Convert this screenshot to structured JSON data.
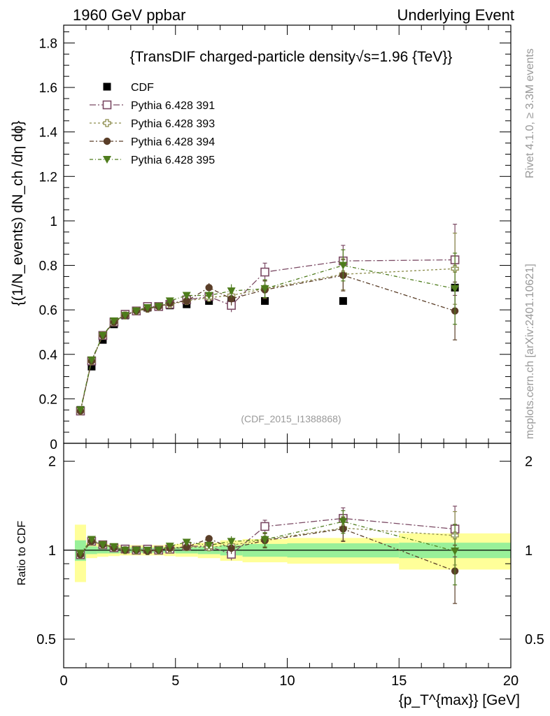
{
  "header": {
    "left": "1960 GeV ppbar",
    "right": "Underlying Event"
  },
  "side_labels": {
    "rivet": "Rivet 4.1.0, ≥ 3.3M events",
    "mcplots": "mcplots.cern.ch [arXiv:2401.10621]"
  },
  "colors": {
    "cdf": "#000000",
    "p391": "#7b4a64",
    "p393": "#8c8c4c",
    "p394": "#5a3e28",
    "p395": "#4e7c1c",
    "band_green": "#99f099",
    "band_yellow": "#ffff99"
  },
  "chart_data": [
    {
      "type": "scatter",
      "title": "{TransDIF charged-particle density√s=1.96 {TeV}}",
      "analysis_label": "(CDF_2015_I1388868)",
      "xlabel": "{p_T^{max}} [GeV]",
      "ylabel": "{(1/N_events) dN_ch /dη dϕ}",
      "xlim": [
        0,
        20
      ],
      "ylim": [
        0,
        1.88
      ],
      "yticks": [
        0.2,
        0.4,
        0.6,
        0.8,
        1,
        1.2,
        1.4,
        1.6,
        1.8
      ],
      "ytick_labels": [
        "0.2",
        "0.4",
        "0.6",
        "0.8",
        "1",
        "1.2",
        "1.4",
        "1.6",
        "1.8"
      ],
      "y_bottom_label": "0",
      "x": [
        0.75,
        1.25,
        1.75,
        2.25,
        2.75,
        3.25,
        3.75,
        4.25,
        4.75,
        5.5,
        6.5,
        7.5,
        9.0,
        12.5,
        17.5
      ],
      "xerr": [
        0.25,
        0.25,
        0.25,
        0.25,
        0.25,
        0.25,
        0.25,
        0.25,
        0.25,
        0.5,
        0.5,
        0.5,
        1.0,
        2.5,
        2.5
      ],
      "legend": [
        "CDF",
        "Pythia 6.428 391",
        "Pythia 6.428 393",
        "Pythia 6.428 394",
        "Pythia 6.428 395"
      ],
      "series": [
        {
          "name": "CDF",
          "marker": "square-filled",
          "values": [
            0.15,
            0.345,
            0.465,
            0.535,
            0.575,
            0.595,
            0.61,
            0.615,
            0.62,
            0.625,
            0.64,
            0.64,
            0.64,
            0.64,
            0.7
          ],
          "errors": [
            0.005,
            0.006,
            0.007,
            0.008,
            0.008,
            0.008,
            0.008,
            0.008,
            0.009,
            0.01,
            0.01,
            0.01,
            0.012,
            0.015,
            0.02
          ]
        },
        {
          "name": "Pythia 6.428 391",
          "marker": "square-open",
          "values": [
            0.145,
            0.37,
            0.485,
            0.545,
            0.58,
            0.595,
            0.615,
            0.615,
            0.625,
            0.645,
            0.66,
            0.62,
            0.77,
            0.82,
            0.825
          ],
          "errors": [
            0.004,
            0.005,
            0.006,
            0.007,
            0.008,
            0.009,
            0.01,
            0.011,
            0.012,
            0.015,
            0.02,
            0.03,
            0.04,
            0.07,
            0.16
          ]
        },
        {
          "name": "Pythia 6.428 393",
          "marker": "cross-open",
          "values": [
            0.145,
            0.37,
            0.485,
            0.545,
            0.575,
            0.595,
            0.605,
            0.615,
            0.625,
            0.64,
            0.655,
            0.665,
            0.695,
            0.76,
            0.785
          ],
          "errors": [
            0.004,
            0.005,
            0.006,
            0.007,
            0.008,
            0.009,
            0.01,
            0.011,
            0.012,
            0.015,
            0.02,
            0.03,
            0.04,
            0.07,
            0.16
          ]
        },
        {
          "name": "Pythia 6.428 394",
          "marker": "circle-filled",
          "values": [
            0.145,
            0.37,
            0.485,
            0.545,
            0.575,
            0.595,
            0.605,
            0.615,
            0.63,
            0.64,
            0.7,
            0.65,
            0.69,
            0.755,
            0.595
          ],
          "errors": [
            0.004,
            0.005,
            0.006,
            0.007,
            0.008,
            0.009,
            0.01,
            0.011,
            0.012,
            0.015,
            0.02,
            0.03,
            0.04,
            0.07,
            0.13
          ]
        },
        {
          "name": "Pythia 6.428 395",
          "marker": "triangle-down-filled",
          "values": [
            0.15,
            0.375,
            0.485,
            0.55,
            0.575,
            0.595,
            0.61,
            0.615,
            0.64,
            0.665,
            0.665,
            0.685,
            0.695,
            0.8,
            0.695
          ],
          "errors": [
            0.004,
            0.005,
            0.006,
            0.007,
            0.008,
            0.009,
            0.01,
            0.011,
            0.012,
            0.015,
            0.02,
            0.03,
            0.04,
            0.07,
            0.16
          ]
        }
      ]
    },
    {
      "type": "scatter",
      "title": "",
      "xlabel": "{p_T^{max}} [GeV]",
      "ylabel": "Ratio to CDF",
      "xlim": [
        0,
        20
      ],
      "ylim": [
        0.4,
        2.3
      ],
      "yscale": "log",
      "xticks": [
        0,
        5,
        10,
        15,
        20
      ],
      "xtick_labels": [
        "0",
        "5",
        "10",
        "15",
        "20"
      ],
      "yticks": [
        0.5,
        1,
        2
      ],
      "ytick_labels": [
        "0.5",
        "1",
        "2"
      ],
      "reference_line": 1,
      "bands": {
        "x_low": [
          0.5,
          1.0,
          1.5,
          2.0,
          2.5,
          3.0,
          3.5,
          4.0,
          4.5,
          5.0,
          6.0,
          7.0,
          8.0,
          10.0,
          15.0
        ],
        "x_high": [
          1.0,
          1.5,
          2.0,
          2.5,
          3.0,
          3.5,
          4.0,
          4.5,
          5.0,
          6.0,
          7.0,
          8.0,
          10.0,
          15.0,
          20.0
        ],
        "green": [
          0.08,
          0.03,
          0.025,
          0.025,
          0.02,
          0.02,
          0.02,
          0.02,
          0.02,
          0.025,
          0.03,
          0.04,
          0.05,
          0.055,
          0.06
        ],
        "yellow": [
          0.22,
          0.06,
          0.05,
          0.045,
          0.04,
          0.04,
          0.04,
          0.04,
          0.045,
          0.05,
          0.06,
          0.08,
          0.09,
          0.1,
          0.14
        ]
      },
      "series": [
        {
          "name": "Pythia 6.428 391",
          "values": [
            0.965,
            1.072,
            1.043,
            1.019,
            1.009,
            1.0,
            1.008,
            1.0,
            1.008,
            1.032,
            1.031,
            0.969,
            1.203,
            1.281,
            1.179
          ],
          "errors": [
            0.02,
            0.015,
            0.013,
            0.013,
            0.014,
            0.015,
            0.016,
            0.018,
            0.02,
            0.024,
            0.03,
            0.045,
            0.06,
            0.11,
            0.23
          ]
        },
        {
          "name": "Pythia 6.428 393",
          "values": [
            0.965,
            1.072,
            1.043,
            1.019,
            1.0,
            1.0,
            0.992,
            1.0,
            1.008,
            1.024,
            1.023,
            1.039,
            1.086,
            1.188,
            1.121
          ],
          "errors": [
            0.02,
            0.015,
            0.013,
            0.013,
            0.014,
            0.015,
            0.016,
            0.018,
            0.02,
            0.024,
            0.03,
            0.045,
            0.06,
            0.11,
            0.23
          ]
        },
        {
          "name": "Pythia 6.428 394",
          "values": [
            0.965,
            1.072,
            1.043,
            1.019,
            1.0,
            1.0,
            0.992,
            1.0,
            1.016,
            1.024,
            1.094,
            1.016,
            1.078,
            1.18,
            0.85
          ],
          "errors": [
            0.02,
            0.015,
            0.013,
            0.013,
            0.014,
            0.015,
            0.016,
            0.018,
            0.02,
            0.024,
            0.03,
            0.045,
            0.06,
            0.11,
            0.19
          ]
        },
        {
          "name": "Pythia 6.428 395",
          "values": [
            0.975,
            1.087,
            1.043,
            1.028,
            1.0,
            1.0,
            1.0,
            1.0,
            1.032,
            1.064,
            1.039,
            1.07,
            1.086,
            1.25,
            0.993
          ],
          "errors": [
            0.02,
            0.015,
            0.013,
            0.013,
            0.014,
            0.015,
            0.016,
            0.018,
            0.02,
            0.024,
            0.03,
            0.045,
            0.06,
            0.11,
            0.23
          ]
        }
      ]
    }
  ]
}
